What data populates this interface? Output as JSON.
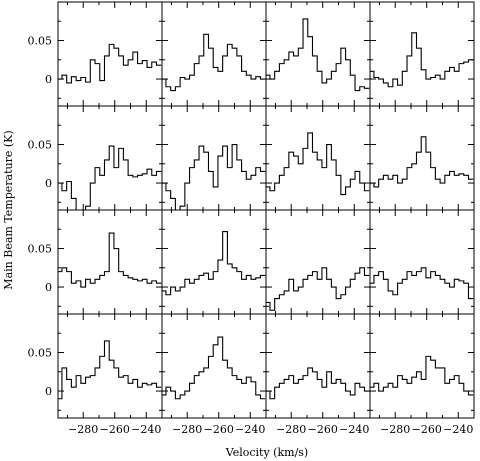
{
  "chart_data": {
    "type": "line",
    "title": "",
    "xlabel": "Velocity (km/s)",
    "ylabel": "Main Beam Temperature (K)",
    "xlim": [
      -296,
      -230
    ],
    "ylim": [
      -0.035,
      0.1
    ],
    "x_ticks": [
      -280,
      -260,
      -240
    ],
    "y_ticks": [
      0,
      0.05
    ],
    "x_tick_labels": [
      "−280",
      "−260",
      "−240"
    ],
    "y_tick_labels": [
      "0",
      "0.05"
    ],
    "grid": false,
    "layout": "4x4 grid of spectra, shared axes",
    "step_style": "histogram",
    "x": [
      -295,
      -292,
      -289,
      -286,
      -283,
      -280,
      -277,
      -274,
      -271,
      -268,
      -265,
      -262,
      -259,
      -256,
      -253,
      -250,
      -247,
      -244,
      -241,
      -238,
      -235,
      -232
    ],
    "series": [
      {
        "values": [
          0.0,
          0.005,
          -0.005,
          0.003,
          -0.002,
          0.002,
          -0.004,
          0.025,
          0.02,
          -0.002,
          0.03,
          0.045,
          0.04,
          0.03,
          0.018,
          0.025,
          0.035,
          0.02,
          0.024,
          0.015,
          0.022,
          0.018
        ]
      },
      {
        "values": [
          0.0,
          -0.01,
          -0.015,
          -0.01,
          0.002,
          0.0,
          0.005,
          0.02,
          0.03,
          0.058,
          0.04,
          0.015,
          0.01,
          0.03,
          0.045,
          0.04,
          0.03,
          0.01,
          0.005,
          0.0,
          0.003,
          0.0
        ]
      },
      {
        "values": [
          0.005,
          0.0,
          0.01,
          0.02,
          0.025,
          0.035,
          0.03,
          0.04,
          0.078,
          0.055,
          0.03,
          0.01,
          -0.005,
          0.0,
          0.01,
          0.02,
          0.04,
          0.025,
          0.005,
          -0.015,
          -0.01,
          -0.012
        ]
      },
      {
        "values": [
          0.01,
          0.002,
          0.0,
          -0.005,
          -0.01,
          0.0,
          -0.008,
          0.01,
          0.03,
          0.06,
          0.04,
          0.012,
          0.0,
          0.002,
          0.005,
          0.0,
          0.01,
          0.015,
          0.01,
          0.02,
          0.022,
          0.025
        ]
      },
      {
        "values": [
          0.0,
          -0.01,
          0.002,
          -0.02,
          -0.04,
          -0.05,
          -0.03,
          0.0,
          0.02,
          0.01,
          0.03,
          0.048,
          0.02,
          0.045,
          0.03,
          0.01,
          0.008,
          0.01,
          0.012,
          0.018,
          0.01,
          0.015
        ]
      },
      {
        "values": [
          0.0,
          -0.01,
          -0.02,
          -0.04,
          -0.03,
          0.0,
          0.02,
          0.03,
          0.048,
          0.04,
          0.015,
          -0.005,
          0.035,
          0.048,
          0.02,
          0.05,
          0.03,
          0.015,
          0.005,
          0.01,
          0.02,
          0.015
        ]
      },
      {
        "values": [
          -0.005,
          -0.01,
          0.0,
          0.01,
          0.02,
          0.04,
          0.035,
          0.025,
          0.045,
          0.065,
          0.04,
          0.03,
          0.02,
          0.05,
          0.03,
          0.01,
          -0.015,
          -0.005,
          0.005,
          0.015,
          0.0,
          -0.01
        ]
      },
      {
        "values": [
          0.0,
          -0.005,
          0.005,
          0.01,
          0.005,
          0.01,
          0.0,
          0.005,
          0.02,
          0.025,
          0.04,
          0.06,
          0.04,
          0.02,
          0.005,
          0.0,
          0.01,
          0.015,
          0.01,
          0.012,
          0.01,
          0.005
        ]
      },
      {
        "values": [
          0.02,
          0.025,
          0.02,
          0.005,
          0.008,
          0.0,
          0.01,
          0.005,
          0.01,
          0.015,
          0.02,
          0.07,
          0.05,
          0.02,
          0.015,
          0.012,
          0.01,
          0.008,
          0.01,
          0.005,
          0.008,
          0.005
        ]
      },
      {
        "values": [
          -0.005,
          -0.01,
          0.0,
          -0.005,
          0.0,
          0.01,
          0.005,
          0.01,
          0.015,
          0.018,
          0.01,
          0.02,
          0.035,
          0.072,
          0.03,
          0.025,
          0.02,
          0.01,
          0.015,
          0.01,
          0.012,
          0.015
        ]
      },
      {
        "values": [
          -0.02,
          -0.03,
          -0.015,
          -0.01,
          -0.005,
          0.01,
          -0.005,
          0.0,
          0.01,
          0.015,
          0.02,
          0.01,
          0.025,
          0.01,
          0.0,
          -0.015,
          -0.01,
          0.0,
          0.01,
          0.018,
          0.025,
          0.015
        ]
      },
      {
        "values": [
          0.005,
          0.015,
          0.02,
          0.01,
          -0.005,
          -0.01,
          0.005,
          0.01,
          0.02,
          0.015,
          0.02,
          0.025,
          0.012,
          0.02,
          0.015,
          0.01,
          0.005,
          0.0,
          0.01,
          0.008,
          0.005,
          -0.015
        ]
      },
      {
        "values": [
          -0.01,
          0.03,
          0.015,
          0.005,
          0.02,
          0.01,
          0.018,
          0.02,
          0.03,
          0.045,
          0.065,
          0.04,
          0.03,
          0.018,
          0.02,
          0.01,
          0.015,
          0.005,
          0.01,
          0.008,
          0.01,
          0.005
        ]
      },
      {
        "values": [
          -0.005,
          0.005,
          0.0,
          -0.01,
          -0.005,
          0.0,
          0.01,
          0.02,
          0.025,
          0.03,
          0.045,
          0.06,
          0.07,
          0.04,
          0.03,
          0.02,
          0.015,
          0.01,
          0.018,
          0.012,
          -0.005,
          -0.01
        ]
      },
      {
        "values": [
          0.0,
          -0.01,
          0.005,
          0.01,
          0.015,
          0.02,
          0.01,
          0.015,
          0.02,
          0.03,
          0.025,
          0.015,
          0.005,
          0.025,
          0.01,
          0.015,
          0.01,
          0.0,
          -0.005,
          0.01,
          0.005,
          0.0
        ]
      },
      {
        "values": [
          0.005,
          0.01,
          0.0,
          0.005,
          0.01,
          0.005,
          0.02,
          0.015,
          0.01,
          0.018,
          0.025,
          0.015,
          0.045,
          0.04,
          0.03,
          0.03,
          0.01,
          0.015,
          0.02,
          0.01,
          0.0,
          -0.005
        ]
      }
    ]
  }
}
